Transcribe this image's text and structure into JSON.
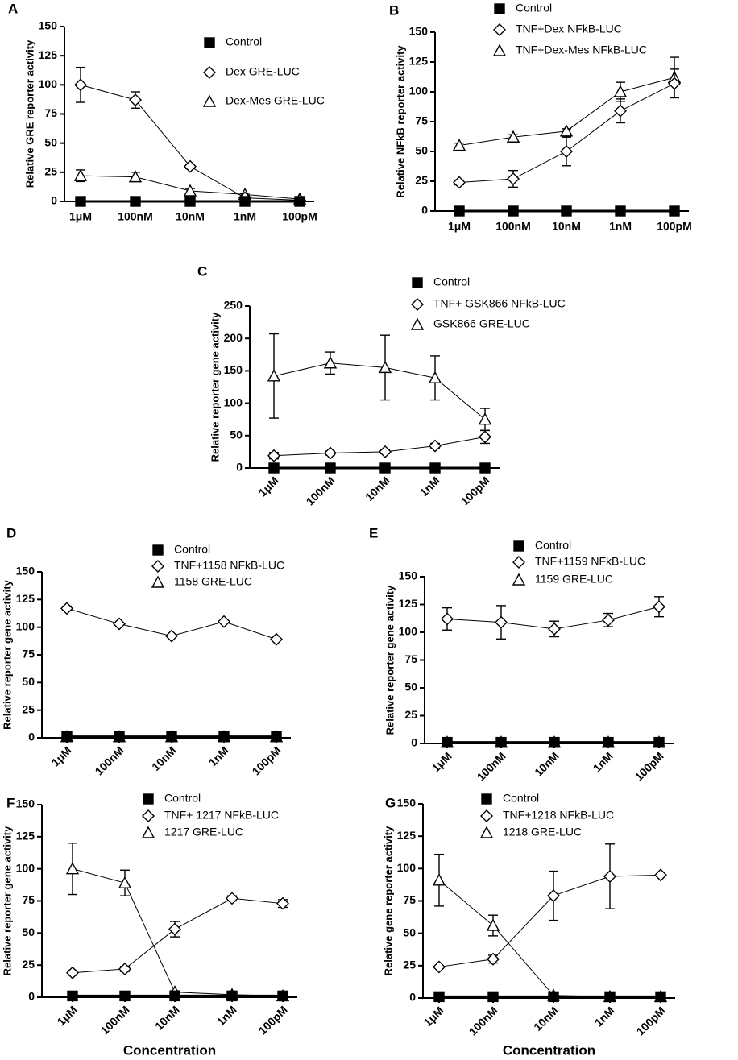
{
  "chart_data": [
    {
      "type": "line",
      "panel": "A",
      "ylabel": "Relative GRE reporter activity",
      "categories": [
        "1μM",
        "100nM",
        "10nM",
        "1nM",
        "100pM"
      ],
      "ylim": [
        0,
        150
      ],
      "yticks": [
        0,
        25,
        50,
        75,
        100,
        125,
        150
      ],
      "series": [
        {
          "name": "Control",
          "marker": "square",
          "color": "#000000",
          "values": [
            0,
            0,
            0,
            0,
            0
          ]
        },
        {
          "name": "Dex GRE-LUC",
          "marker": "diamond",
          "color": "#000000",
          "values": [
            100,
            87,
            30,
            3,
            1
          ],
          "errors": [
            15,
            7,
            2,
            1,
            1
          ]
        },
        {
          "name": "Dex-Mes GRE-LUC",
          "marker": "triangle",
          "color": "#000000",
          "values": [
            22,
            21,
            9,
            6,
            2
          ],
          "errors": [
            5,
            4,
            2,
            1,
            1
          ]
        }
      ]
    },
    {
      "type": "line",
      "panel": "B",
      "ylabel": "Relative NFkB reporter activity",
      "categories": [
        "1μM",
        "100nM",
        "10nM",
        "1nM",
        "100pM"
      ],
      "ylim": [
        0,
        150
      ],
      "yticks": [
        0,
        25,
        50,
        75,
        100,
        125,
        150
      ],
      "series": [
        {
          "name": "Control",
          "marker": "square",
          "color": "#000000",
          "values": [
            0,
            0,
            0,
            0,
            0
          ]
        },
        {
          "name": "TNF+Dex NFkB-LUC",
          "marker": "diamond",
          "color": "#000000",
          "values": [
            24,
            27,
            50,
            84,
            107
          ],
          "errors": [
            2,
            7,
            12,
            10,
            12
          ]
        },
        {
          "name": "TNF+Dex-Mes NFkB-LUC",
          "marker": "triangle",
          "color": "#000000",
          "values": [
            55,
            62,
            67,
            100,
            112
          ],
          "errors": [
            2,
            2,
            2,
            8,
            17
          ]
        }
      ]
    },
    {
      "type": "line",
      "panel": "C",
      "ylabel": "Relative reporter gene activity",
      "categories": [
        "1μM",
        "100nM",
        "10nM",
        "1nM",
        "100pM"
      ],
      "ylim": [
        0,
        250
      ],
      "yticks": [
        0,
        50,
        100,
        150,
        200,
        250
      ],
      "series": [
        {
          "name": "Control",
          "marker": "square",
          "color": "#000000",
          "values": [
            0,
            0,
            0,
            0,
            0
          ]
        },
        {
          "name": "TNF+ GSK866 NFkB-LUC",
          "marker": "diamond",
          "color": "#000000",
          "values": [
            19,
            23,
            25,
            34,
            48
          ],
          "errors": [
            5,
            3,
            3,
            4,
            10
          ]
        },
        {
          "name": "GSK866 GRE-LUC",
          "marker": "triangle",
          "color": "#000000",
          "values": [
            142,
            162,
            155,
            139,
            75
          ],
          "errors": [
            65,
            17,
            50,
            34,
            17
          ]
        }
      ]
    },
    {
      "type": "line",
      "panel": "D",
      "ylabel": "Relative reporter gene activity",
      "categories": [
        "1μM",
        "100nM",
        "10nM",
        "1nM",
        "100pM"
      ],
      "ylim": [
        0,
        150
      ],
      "yticks": [
        0,
        25,
        50,
        75,
        100,
        125,
        150
      ],
      "series": [
        {
          "name": "Control",
          "marker": "square",
          "color": "#000000",
          "values": [
            1,
            1,
            1,
            1,
            1
          ]
        },
        {
          "name": "TNF+1158 NFkB-LUC",
          "marker": "diamond",
          "color": "#000000",
          "values": [
            117,
            103,
            92,
            105,
            89
          ],
          "errors": [
            2,
            1,
            1,
            1,
            1
          ]
        },
        {
          "name": "1158 GRE-LUC",
          "marker": "triangle",
          "color": "#000000",
          "values": [
            1,
            1,
            1,
            1,
            1
          ]
        }
      ]
    },
    {
      "type": "line",
      "panel": "E",
      "ylabel": "Relative reporter gene activity",
      "categories": [
        "1μM",
        "100nM",
        "10nM",
        "1nM",
        "100pM"
      ],
      "ylim": [
        0,
        150
      ],
      "yticks": [
        0,
        25,
        50,
        75,
        100,
        125,
        150
      ],
      "series": [
        {
          "name": "Control",
          "marker": "square",
          "color": "#000000",
          "values": [
            1,
            1,
            1,
            1,
            1
          ]
        },
        {
          "name": "TNF+1159 NFkB-LUC",
          "marker": "diamond",
          "color": "#000000",
          "values": [
            112,
            109,
            103,
            111,
            123
          ],
          "errors": [
            10,
            15,
            7,
            6,
            9
          ]
        },
        {
          "name": "1159 GRE-LUC",
          "marker": "triangle",
          "color": "#000000",
          "values": [
            1,
            1,
            1,
            1,
            1
          ]
        }
      ]
    },
    {
      "type": "line",
      "panel": "F",
      "ylabel": "Relative reporter gene activity",
      "xlabel": "Concentration",
      "categories": [
        "1μM",
        "100nM",
        "10nM",
        "1nM",
        "100pM"
      ],
      "ylim": [
        0,
        150
      ],
      "yticks": [
        0,
        25,
        50,
        75,
        100,
        125,
        150
      ],
      "series": [
        {
          "name": "Control",
          "marker": "square",
          "color": "#000000",
          "values": [
            1,
            1,
            1,
            1,
            1
          ]
        },
        {
          "name": "TNF+ 1217 NFkB-LUC",
          "marker": "diamond",
          "color": "#000000",
          "values": [
            19,
            22,
            53,
            77,
            73
          ],
          "errors": [
            2,
            2,
            6,
            2,
            3
          ]
        },
        {
          "name": "1217 GRE-LUC",
          "marker": "triangle",
          "color": "#000000",
          "values": [
            100,
            89,
            4,
            2,
            1
          ],
          "errors": [
            20,
            10,
            1,
            1,
            1
          ]
        }
      ]
    },
    {
      "type": "line",
      "panel": "G",
      "ylabel": "Relative gene reporter activity",
      "xlabel": "Concentration",
      "categories": [
        "1μM",
        "100nM",
        "10nM",
        "1nM",
        "100pM"
      ],
      "ylim": [
        0,
        150
      ],
      "yticks": [
        0,
        25,
        50,
        75,
        100,
        125,
        150
      ],
      "series": [
        {
          "name": "Control",
          "marker": "square",
          "color": "#000000",
          "values": [
            1,
            1,
            1,
            1,
            1
          ]
        },
        {
          "name": "TNF+1218 NFkB-LUC",
          "marker": "diamond",
          "color": "#000000",
          "values": [
            24,
            30,
            79,
            94,
            95
          ],
          "errors": [
            1,
            3,
            19,
            25,
            1
          ]
        },
        {
          "name": "1218 GRE-LUC",
          "marker": "triangle",
          "color": "#000000",
          "values": [
            91,
            56,
            2,
            1,
            1
          ],
          "errors": [
            20,
            8,
            1,
            1,
            1
          ]
        }
      ]
    }
  ]
}
